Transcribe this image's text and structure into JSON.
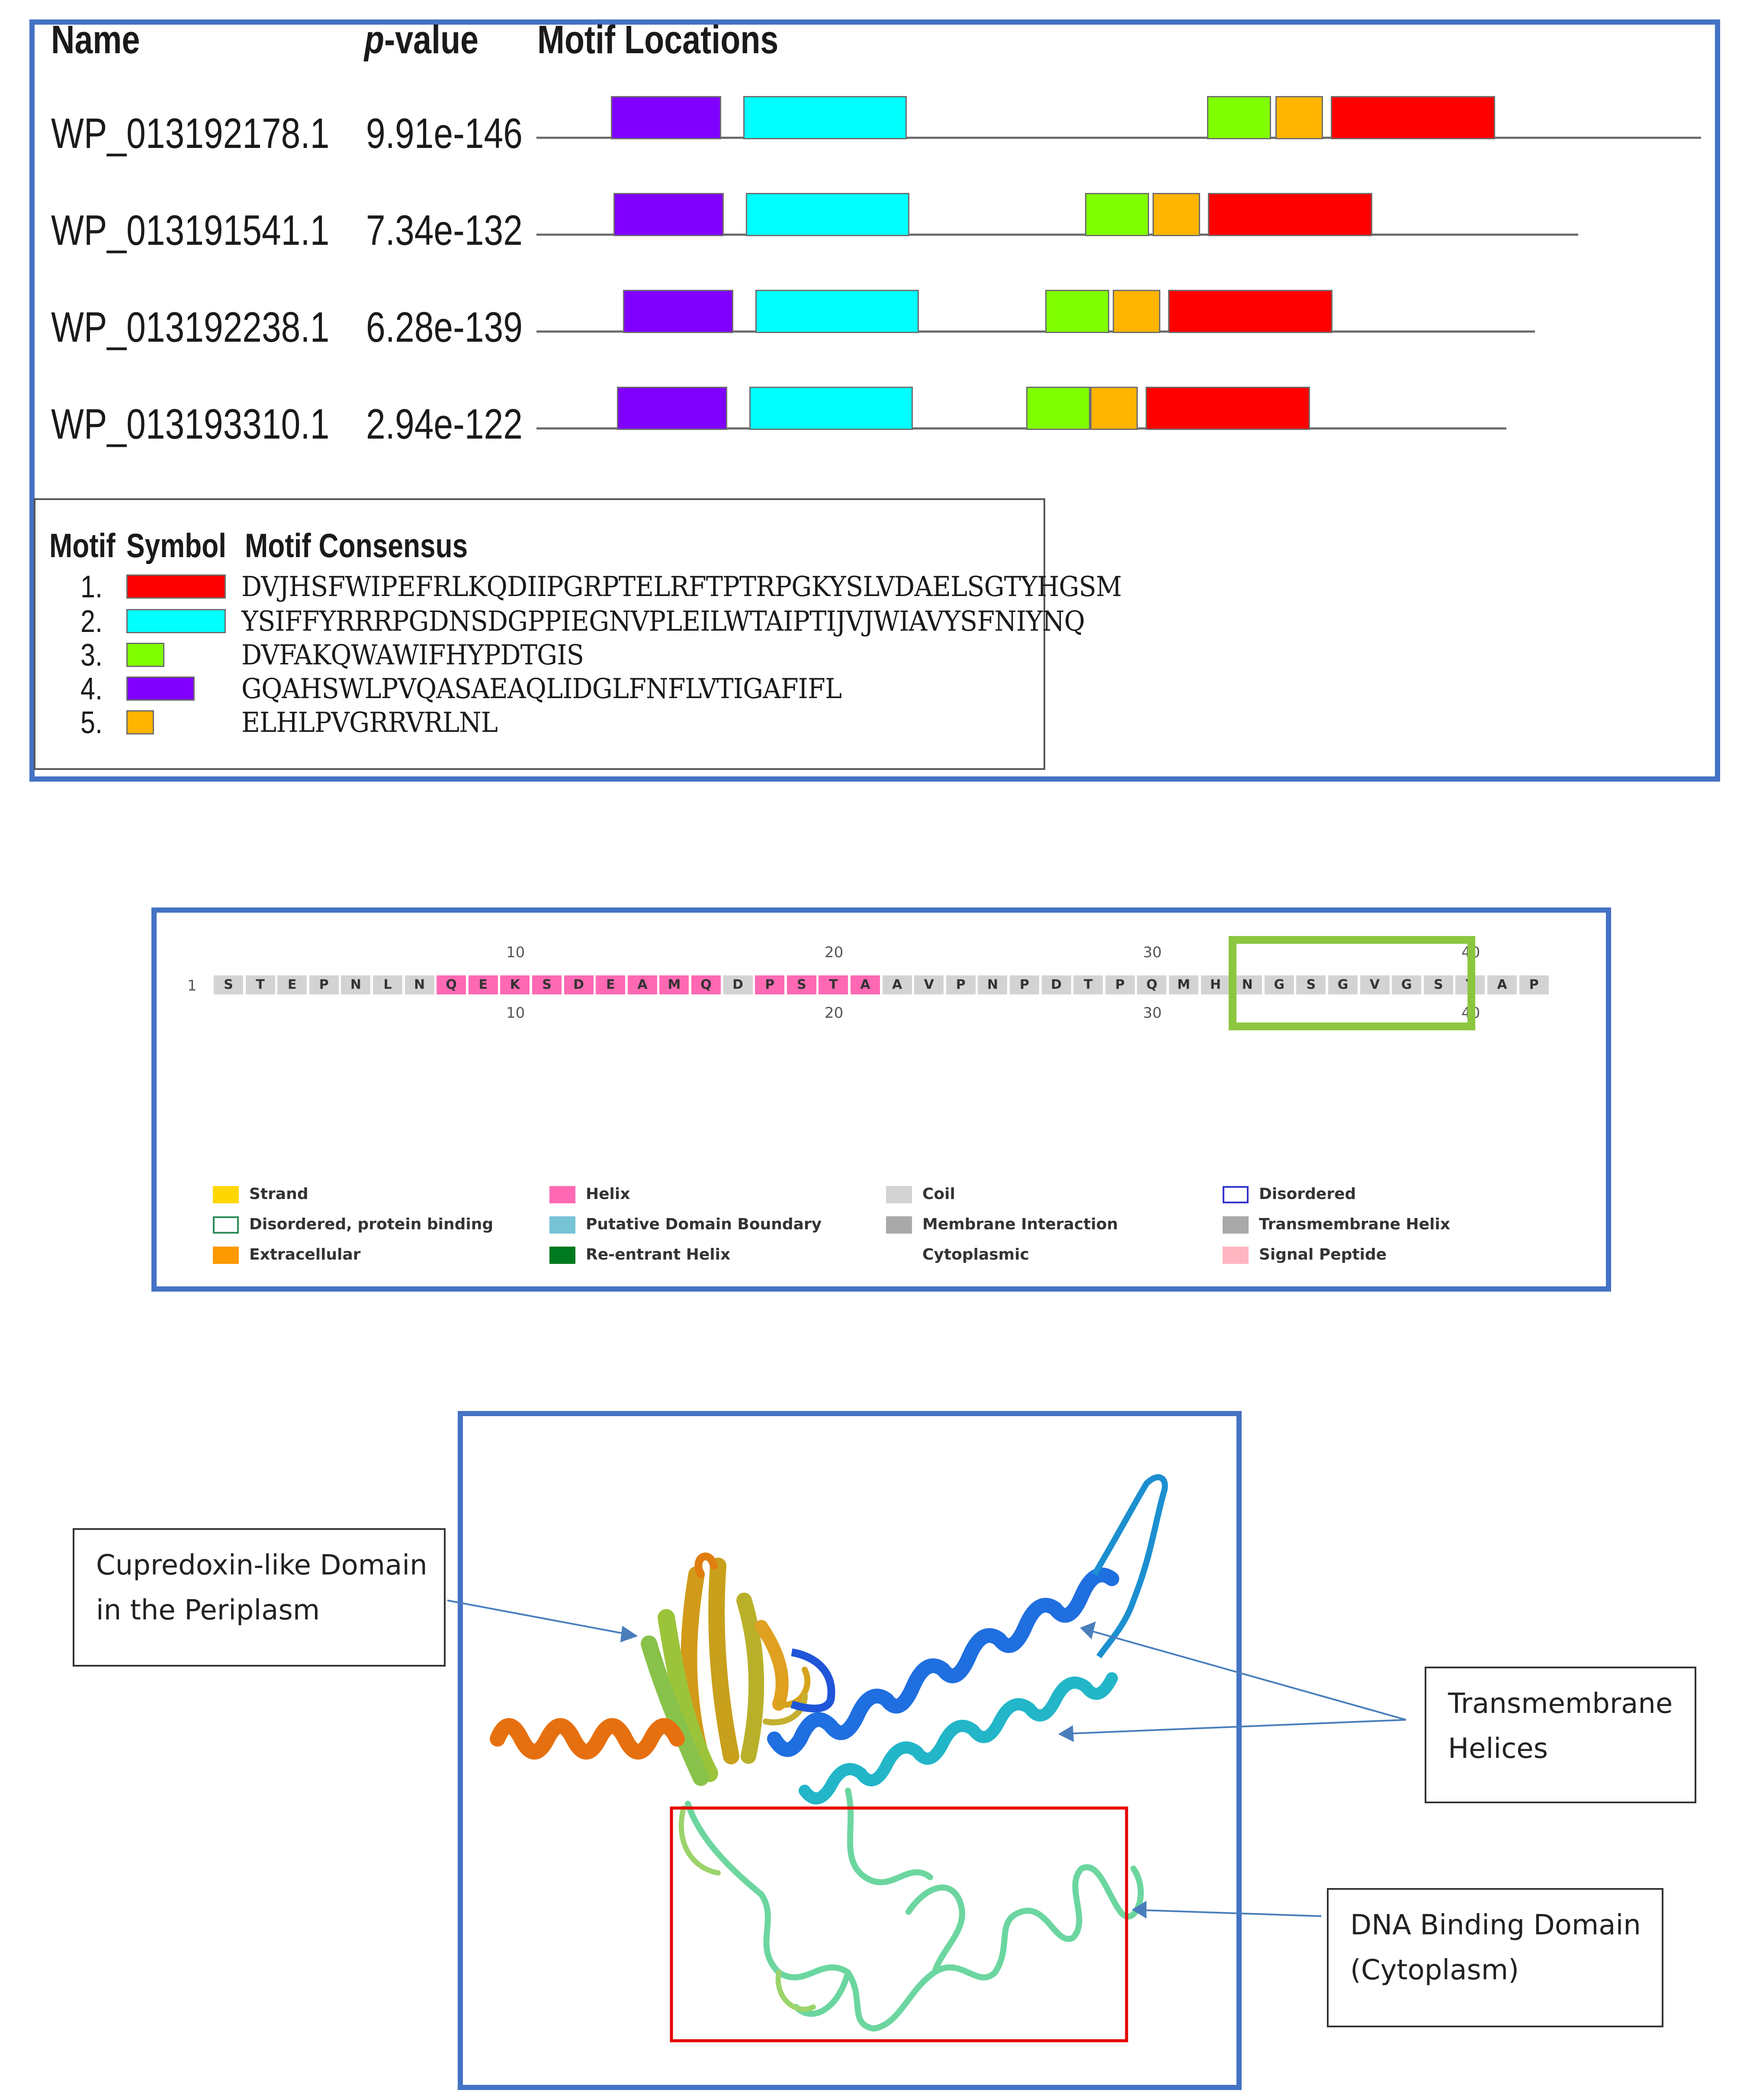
{
  "meme": {
    "headers": {
      "name": "Name",
      "p_italic": "p",
      "p_rest": "-value",
      "locations": "Motif Locations"
    },
    "rows": [
      {
        "name": "WP_013192178.1",
        "p": "9.91e-146"
      },
      {
        "name": "WP_013191541.1",
        "p": "7.34e-132"
      },
      {
        "name": "WP_013192238.1",
        "p": "6.28e-139"
      },
      {
        "name": "WP_013193310.1",
        "p": "2.94e-122"
      }
    ],
    "legend": {
      "headers": {
        "motif": "Motif",
        "symbol": "Symbol",
        "consensus": "Motif Consensus"
      },
      "motifs": [
        {
          "num": "1.",
          "color": "#ff0000",
          "consensus": "DVJHSFWIPEFRLKQDIIPGRPTELRFTPTRPGKYSLVDAELSGTYHGSM"
        },
        {
          "num": "2.",
          "color": "#00ffff",
          "consensus": "YSIFFYRRRPGDNSDGPPIEGNVPLEILWTAIPTIJVJWIAVYSFNIYNQ"
        },
        {
          "num": "3.",
          "color": "#7fff00",
          "consensus": "DVFAKQWAWIFHYPDTGIS"
        },
        {
          "num": "4.",
          "color": "#8000ff",
          "consensus": "GQAHSWLPVQASAEAQLIDGLFNFLVTIGAFIFL"
        },
        {
          "num": "5.",
          "color": "#ffb400",
          "consensus": "ELHLPVGRRVRLNL"
        }
      ]
    }
  },
  "sequence": {
    "start_label": "1",
    "residues": [
      "S",
      "T",
      "E",
      "P",
      "N",
      "L",
      "N",
      "Q",
      "E",
      "K",
      "S",
      "D",
      "E",
      "A",
      "M",
      "Q",
      "D",
      "P",
      "S",
      "T",
      "A",
      "A",
      "V",
      "P",
      "N",
      "P",
      "D",
      "T",
      "P",
      "Q",
      "M",
      "H",
      "N",
      "G",
      "S",
      "G",
      "V",
      "G",
      "S",
      "Y",
      "A",
      "P"
    ],
    "helix_positions": [
      8,
      9,
      10,
      11,
      12,
      13,
      14,
      15,
      16,
      18,
      19,
      20,
      21
    ],
    "ticks": [
      "10",
      "20",
      "30",
      "40"
    ],
    "colors": {
      "coil": "#d3d3d3",
      "helix": "#ff69b4",
      "highlight": "#8cc63f"
    },
    "legend": [
      {
        "label": "Strand",
        "color": "#ffd700",
        "style": "fill"
      },
      {
        "label": "Helix",
        "color": "#ff69b4",
        "style": "fill"
      },
      {
        "label": "Coil",
        "color": "#d3d3d3",
        "style": "fill"
      },
      {
        "label": "Disordered",
        "color": "#3333cc",
        "style": "outline"
      },
      {
        "label": "Disordered, protein binding",
        "color": "#2e8b57",
        "style": "outline"
      },
      {
        "label": "Putative Domain Boundary",
        "color": "#76c3d6",
        "style": "fill"
      },
      {
        "label": "Membrane Interaction",
        "color": "#a9a9a9",
        "style": "fill"
      },
      {
        "label": "Transmembrane Helix",
        "color": "#a9a9a9",
        "style": "fill"
      },
      {
        "label": "Extracellular",
        "color": "#ff9900",
        "style": "fill"
      },
      {
        "label": "Re-entrant Helix",
        "color": "#007a1f",
        "style": "fill"
      },
      {
        "label": "Cytoplasmic",
        "color": "",
        "style": "none"
      },
      {
        "label": "Signal Peptide",
        "color": "#ffb6c1",
        "style": "fill"
      }
    ]
  },
  "structure": {
    "callouts": {
      "cupredoxin": [
        "Cupredoxin-like Domain",
        "in the Periplasm"
      ],
      "transmembrane": [
        "Transmembrane",
        "Helices"
      ],
      "dna": [
        "DNA Binding Domain",
        "(Cytoplasm)"
      ]
    },
    "colors": {
      "frame": "#4472c4",
      "dna_box": "#e60000",
      "arrow": "#4a7ebb"
    }
  }
}
